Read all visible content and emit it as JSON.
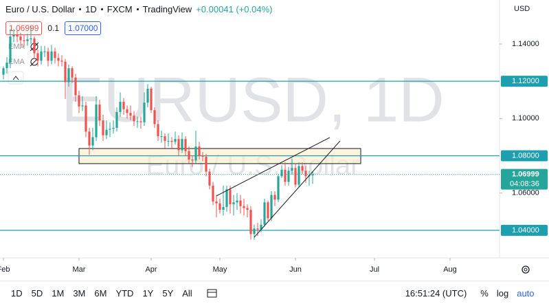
{
  "header": {
    "symbol": "Euro / U.S. Dollar",
    "interval": "1D",
    "exchange": "FXCM",
    "source": "TradingView",
    "change": "+0.00041 (+0.04%)",
    "bid": "1.06999",
    "spread": "0.1",
    "ask": "1.07000"
  },
  "indicators": [
    "EMA",
    "EMA"
  ],
  "currency": "USD",
  "toolbar": {
    "ranges": [
      "1D",
      "5D",
      "1M",
      "3M",
      "6M",
      "YTD",
      "1Y",
      "5Y",
      "All"
    ],
    "clock": "16:51:24 (UTC)",
    "percent": "%",
    "log": "log",
    "auto": "auto"
  },
  "chart_data": {
    "type": "candlestick",
    "watermark": "EURUSD, 1D",
    "watermark_sub": "Euro / U.S. Dollar",
    "up_color": "#26a69a",
    "down_color": "#ef5350",
    "level_color": "#1e9fb0",
    "grid": false,
    "xlim": [
      -1,
      144.4
    ],
    "ylim": [
      1.0252,
      1.1636
    ],
    "xticks": [
      {
        "value": 0,
        "label": "Feb"
      },
      {
        "value": 22,
        "label": "Mar"
      },
      {
        "value": 43,
        "label": "Apr"
      },
      {
        "value": 63,
        "label": "May"
      },
      {
        "value": 85,
        "label": "Jun"
      },
      {
        "value": 108,
        "label": "Jul"
      },
      {
        "value": 130,
        "label": "Aug"
      }
    ],
    "yticks": [
      {
        "value": 1.06,
        "label": "1.06000"
      },
      {
        "value": 1.1,
        "label": "1.10000"
      },
      {
        "value": 1.14,
        "label": "1.14000"
      }
    ],
    "levels": [
      {
        "value": 1.12,
        "label": "1.12000"
      },
      {
        "value": 1.08,
        "label": "1.08000"
      },
      {
        "value": 1.04,
        "label": "1.04000"
      }
    ],
    "last": {
      "value": 1.06999,
      "label": "1.06999",
      "countdown": "04:08:36"
    },
    "zone": {
      "from": 22,
      "to": 104,
      "low": 1.0758,
      "high": 1.0839
    },
    "trendlines": [
      [
        [
          73,
          1.0363
        ],
        [
          98,
          1.088
        ]
      ],
      [
        [
          62,
          1.0585
        ],
        [
          95,
          1.0898
        ]
      ]
    ],
    "series": [
      {
        "name": "EURUSD",
        "ohlc": [
          [
            1.1235,
            1.128,
            1.121,
            1.127
          ],
          [
            1.127,
            1.133,
            1.124,
            1.13
          ],
          [
            1.13,
            1.148,
            1.127,
            1.144
          ],
          [
            1.144,
            1.148,
            1.141,
            1.145
          ],
          [
            1.145,
            1.1475,
            1.141,
            1.144
          ],
          [
            1.144,
            1.146,
            1.139,
            1.142
          ],
          [
            1.142,
            1.145,
            1.1385,
            1.1415
          ],
          [
            1.1415,
            1.1455,
            1.139,
            1.1425
          ],
          [
            1.1425,
            1.1495,
            1.14,
            1.143
          ],
          [
            1.143,
            1.144,
            1.132,
            1.135
          ],
          [
            1.135,
            1.137,
            1.128,
            1.131
          ],
          [
            1.131,
            1.139,
            1.129,
            1.136
          ],
          [
            1.136,
            1.139,
            1.133,
            1.136
          ],
          [
            1.136,
            1.138,
            1.128,
            1.131
          ],
          [
            1.131,
            1.1395,
            1.129,
            1.136
          ],
          [
            1.136,
            1.138,
            1.1295,
            1.1325
          ],
          [
            1.1325,
            1.135,
            1.128,
            1.131
          ],
          [
            1.131,
            1.134,
            1.128,
            1.1305
          ],
          [
            1.1305,
            1.132,
            1.1105,
            1.1195
          ],
          [
            1.1195,
            1.129,
            1.117,
            1.127
          ],
          [
            1.127,
            1.128,
            1.119,
            1.122
          ],
          [
            1.122,
            1.124,
            1.109,
            1.1125
          ],
          [
            1.1125,
            1.115,
            1.103,
            1.1065
          ],
          [
            1.1065,
            1.112,
            1.104,
            1.107
          ],
          [
            1.107,
            1.109,
            1.09,
            1.093
          ],
          [
            1.093,
            1.095,
            1.0805,
            1.0855
          ],
          [
            1.0855,
            1.095,
            1.083,
            1.09
          ],
          [
            1.09,
            1.112,
            1.088,
            1.1075
          ],
          [
            1.1075,
            1.11,
            1.096,
            1.099
          ],
          [
            1.099,
            1.102,
            1.088,
            1.091
          ],
          [
            1.091,
            1.099,
            1.089,
            1.094
          ],
          [
            1.094,
            1.098,
            1.09,
            1.0945
          ],
          [
            1.0945,
            1.099,
            1.092,
            1.095
          ],
          [
            1.095,
            1.106,
            1.093,
            1.1035
          ],
          [
            1.1035,
            1.114,
            1.101,
            1.109
          ],
          [
            1.109,
            1.111,
            1.102,
            1.105
          ],
          [
            1.105,
            1.107,
            1.1,
            1.103
          ],
          [
            1.103,
            1.107,
            1.099,
            1.1015
          ],
          [
            1.1015,
            1.104,
            1.096,
            1.0985
          ],
          [
            1.0985,
            1.101,
            1.095,
            1.0985
          ],
          [
            1.0985,
            1.101,
            1.0945,
            1.098
          ],
          [
            1.098,
            1.114,
            1.096,
            1.1085
          ],
          [
            1.1085,
            1.1185,
            1.106,
            1.116
          ],
          [
            1.116,
            1.117,
            1.103,
            1.1045
          ],
          [
            1.1045,
            1.106,
            1.095,
            1.097
          ],
          [
            1.097,
            1.099,
            1.088,
            1.0905
          ],
          [
            1.0905,
            1.0935,
            1.087,
            1.0905
          ],
          [
            1.0905,
            1.092,
            1.084,
            1.088
          ],
          [
            1.088,
            1.092,
            1.085,
            1.088
          ],
          [
            1.088,
            1.09,
            1.084,
            1.0875
          ],
          [
            1.0875,
            1.093,
            1.086,
            1.089
          ],
          [
            1.089,
            1.091,
            1.08,
            1.083
          ],
          [
            1.083,
            1.0925,
            1.0815,
            1.089
          ],
          [
            1.089,
            1.0905,
            1.08,
            1.0825
          ],
          [
            1.0825,
            1.085,
            1.076,
            1.078
          ],
          [
            1.078,
            1.08,
            1.074,
            1.0775
          ],
          [
            1.0775,
            1.0935,
            1.076,
            1.085
          ],
          [
            1.085,
            1.0875,
            1.078,
            1.08
          ],
          [
            1.08,
            1.082,
            1.077,
            1.0795
          ],
          [
            1.0795,
            1.081,
            1.069,
            1.0715
          ],
          [
            1.0715,
            1.073,
            1.062,
            1.064
          ],
          [
            1.064,
            1.066,
            1.0535,
            1.0555
          ],
          [
            1.0555,
            1.059,
            1.047,
            1.0545
          ],
          [
            1.0545,
            1.057,
            1.049,
            1.051
          ],
          [
            1.051,
            1.064,
            1.048,
            1.0525
          ],
          [
            1.0525,
            1.064,
            1.05,
            1.062
          ],
          [
            1.062,
            1.064,
            1.049,
            1.054
          ],
          [
            1.054,
            1.059,
            1.048,
            1.055
          ],
          [
            1.055,
            1.06,
            1.051,
            1.056
          ],
          [
            1.056,
            1.059,
            1.049,
            1.053
          ],
          [
            1.053,
            1.057,
            1.048,
            1.052
          ],
          [
            1.052,
            1.054,
            1.047,
            1.051
          ],
          [
            1.051,
            1.053,
            1.035,
            1.038
          ],
          [
            1.038,
            1.043,
            1.035,
            1.041
          ],
          [
            1.041,
            1.044,
            1.037,
            1.0405
          ],
          [
            1.0405,
            1.046,
            1.039,
            1.043
          ],
          [
            1.043,
            1.057,
            1.042,
            1.055
          ],
          [
            1.055,
            1.056,
            1.045,
            1.0465
          ],
          [
            1.0465,
            1.061,
            1.045,
            1.059
          ],
          [
            1.059,
            1.061,
            1.053,
            1.0565
          ],
          [
            1.0565,
            1.07,
            1.055,
            1.069
          ],
          [
            1.069,
            1.075,
            1.068,
            1.0725
          ],
          [
            1.0725,
            1.0765,
            1.064,
            1.066
          ],
          [
            1.066,
            1.074,
            1.064,
            1.072
          ],
          [
            1.072,
            1.0785,
            1.07,
            1.0735
          ],
          [
            1.0735,
            1.076,
            1.063,
            1.0645
          ],
          [
            1.0645,
            1.0765,
            1.063,
            1.0745
          ],
          [
            1.0745,
            1.0765,
            1.07,
            1.072
          ],
          [
            1.072,
            1.0745,
            1.0655,
            1.069
          ],
          [
            1.069,
            1.072,
            1.064,
            1.0695
          ],
          [
            1.0695,
            1.0715,
            1.065,
            1.06999
          ]
        ]
      }
    ]
  }
}
